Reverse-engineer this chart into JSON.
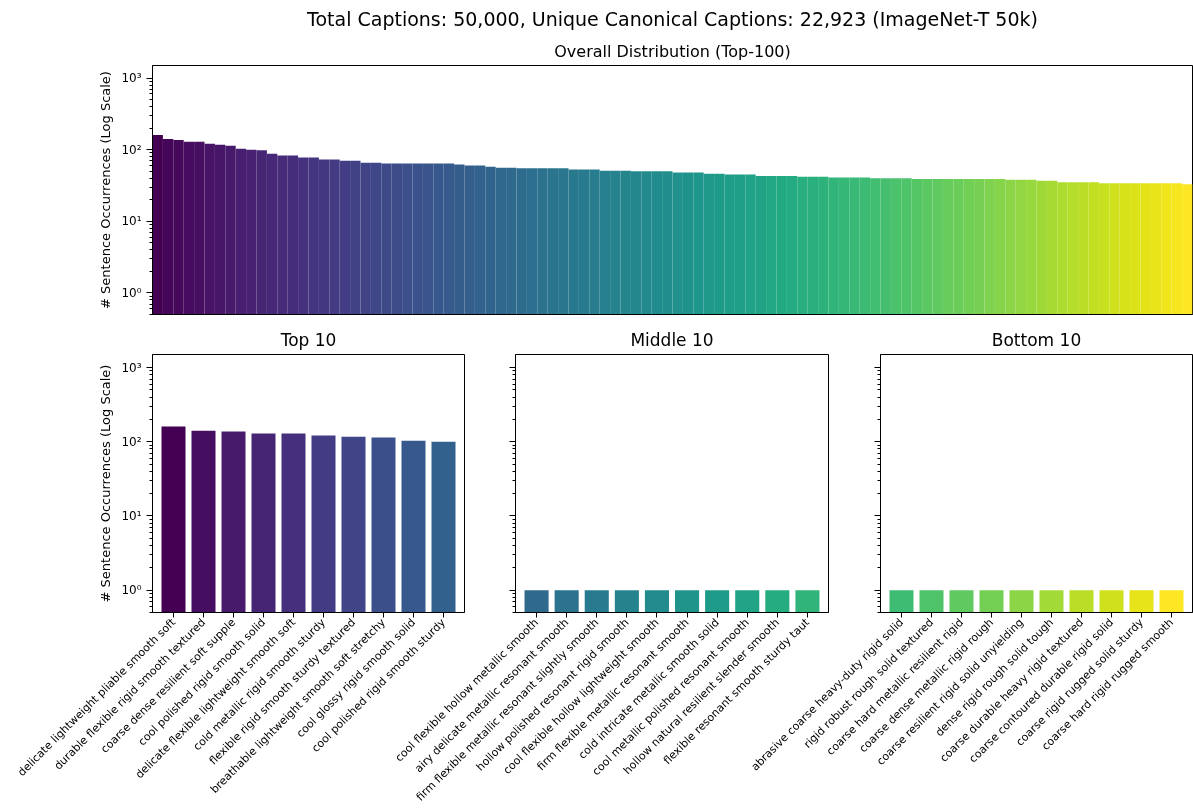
{
  "chart_data": [
    {
      "type": "bar",
      "title": "Total Captions: 50,000, Unique Canonical Captions: 22,923 (ImageNet-T 50k)",
      "subtitle": "Overall Distribution (Top-100)",
      "ylabel": "# Sentence Occurrences (Log Scale)",
      "log": true,
      "tick_labels": "y",
      "categories": [
        null,
        null,
        null,
        null,
        null,
        null,
        null,
        null,
        null,
        null,
        null,
        null,
        null,
        null,
        null,
        null,
        null,
        null,
        null,
        null,
        null,
        null,
        null,
        null,
        null,
        null,
        null,
        null,
        null,
        null,
        null,
        null,
        null,
        null,
        null,
        null,
        null,
        null,
        null,
        null,
        null,
        null,
        null,
        null,
        null,
        null,
        null,
        null,
        null,
        null,
        null,
        null,
        null,
        null,
        null,
        null,
        null,
        null,
        null,
        null,
        null,
        null,
        null,
        null,
        null,
        null,
        null,
        null,
        null,
        null,
        null,
        null,
        null,
        null,
        null,
        null,
        null,
        null,
        null,
        null,
        null,
        null,
        null,
        null,
        null,
        null,
        null,
        null,
        null,
        null,
        null,
        null,
        null,
        null,
        null,
        null,
        null,
        null,
        null,
        null
      ],
      "values": [
        160,
        141,
        137,
        129,
        129,
        121,
        117,
        114,
        103,
        100,
        98,
        88,
        83,
        83,
        78,
        78,
        73,
        73,
        70,
        70,
        66,
        66,
        64,
        64,
        64,
        64,
        64,
        64,
        64,
        62,
        60,
        60,
        58,
        56,
        56,
        55,
        55,
        55,
        55,
        55,
        53,
        53,
        53,
        51,
        51,
        51,
        50,
        50,
        50,
        50,
        48,
        48,
        48,
        46,
        46,
        45,
        45,
        45,
        43,
        43,
        43,
        43,
        42,
        42,
        42,
        41,
        41,
        41,
        41,
        40,
        40,
        40,
        40,
        39,
        39,
        39,
        39,
        39,
        39,
        39,
        39,
        39,
        38,
        38,
        38,
        37,
        37,
        35,
        35,
        35,
        35,
        34,
        34,
        34,
        34,
        34,
        34,
        34,
        34,
        33
      ],
      "colors": [
        "#440154",
        "#450558",
        "#45085B",
        "#460C5F",
        "#470F62",
        "#471466",
        "#471669",
        "#481A6C",
        "#481E70",
        "#482172",
        "#472575",
        "#472777",
        "#472B7A",
        "#462D7C",
        "#46317E",
        "#453580",
        "#443781",
        "#433B83",
        "#423D84",
        "#414186",
        "#404487",
        "#3F4788",
        "#3D4A89",
        "#3D4C89",
        "#3B508A",
        "#3A528B",
        "#39558B",
        "#37588C",
        "#365A8C",
        "#355D8C",
        "#345F8D",
        "#32628D",
        "#31648D",
        "#30678D",
        "#2F6A8D",
        "#2E6C8E",
        "#2D6F8E",
        "#2C718E",
        "#2B748E",
        "#2A768E",
        "#29798E",
        "#287B8E",
        "#277D8E",
        "#26808E",
        "#25828E",
        "#24858D",
        "#23878D",
        "#22898D",
        "#218C8D",
        "#218E8C",
        "#20918C",
        "#1F938B",
        "#1F968B",
        "#1E998A",
        "#1E9A89",
        "#1E9D88",
        "#1E9F88",
        "#1FA286",
        "#20A485",
        "#21A784",
        "#23A982",
        "#25AB81",
        "#28AE7F",
        "#2AB07E",
        "#2EB27C",
        "#30B47A",
        "#35B778",
        "#39B976",
        "#3DBB74",
        "#42BE71",
        "#45BF6F",
        "#4BC26C",
        "#4FC369",
        "#55C666",
        "#5BC862",
        "#60C960",
        "#67CC5C",
        "#6BCD59",
        "#72CF55",
        "#77D052",
        "#7ED24E",
        "#86D449",
        "#8BD546",
        "#92D741",
        "#97D83E",
        "#9FD938",
        "#A7DB33",
        "#ADDC30",
        "#B5DD2B",
        "#BADE27",
        "#C2DF22",
        "#C7E01F",
        "#CFE11C",
        "#D7E219",
        "#DCE218",
        "#E4E318",
        "#E9E419",
        "#F1E51C",
        "#F6E61F",
        "#FDE724"
      ],
      "ylim": [
        0.5,
        1500
      ],
      "yticks": [
        {
          "value": 1,
          "label": "10⁰"
        },
        {
          "value": 10,
          "label": "10¹"
        },
        {
          "value": 100,
          "label": "10²"
        },
        {
          "value": 1000,
          "label": "10³"
        }
      ]
    },
    {
      "type": "bar",
      "title": "Top 10",
      "ylabel": "# Sentence Occurrences (Log Scale)",
      "log": true,
      "categories": [
        "delicate lightweight pliable smooth soft",
        "durable flexible rigid smooth textured",
        "coarse dense resilient soft supple",
        "cool polished rigid smooth solid",
        "delicate flexible lightweight smooth soft",
        "cold metallic rigid smooth sturdy",
        "flexible rigid smooth sturdy textured",
        "breathable lightweight smooth soft stretchy",
        "cool glossy rigid smooth solid",
        "cool polished rigid smooth sturdy"
      ],
      "values": [
        160,
        141,
        137,
        129,
        129,
        121,
        117,
        114,
        103,
        100
      ],
      "colors": [
        "#440154",
        "#460E61",
        "#481A6C",
        "#472575",
        "#46307D",
        "#433B83",
        "#3F4587",
        "#3B508A",
        "#37588C",
        "#33618D"
      ],
      "ylim": [
        0.5,
        1500
      ],
      "yticks": [
        {
          "value": 1,
          "label": "10⁰"
        },
        {
          "value": 10,
          "label": "10¹"
        },
        {
          "value": 100,
          "label": "10²"
        },
        {
          "value": 1000,
          "label": "10³"
        }
      ]
    },
    {
      "type": "bar",
      "title": "Middle 10",
      "log": true,
      "tick_labels": "x",
      "categories": [
        "cool flexible hollow metallic smooth",
        "airy delicate metallic resonant smooth",
        "firm flexible metallic resonant slightly smooth",
        "hollow polished resonant rigid smooth",
        "cool flexible hollow lightweight smooth",
        "firm flexible metallic resonant smooth",
        "cold intricate metallic smooth solid",
        "cool metallic polished resonant smooth",
        "hollow natural resilient slender smooth",
        "flexible resonant smooth sturdy taut"
      ],
      "values": [
        1,
        1,
        1,
        1,
        1,
        1,
        1,
        1,
        1,
        1
      ],
      "colors": [
        "#2F6A8D",
        "#2B738E",
        "#287B8E",
        "#25838D",
        "#228B8D",
        "#1F948B",
        "#1E9C89",
        "#20A485",
        "#26AC81",
        "#30B47A"
      ],
      "ylim": [
        0.5,
        1500
      ],
      "yticks": [
        {
          "value": 1,
          "label": null
        },
        {
          "value": 10,
          "label": null
        },
        {
          "value": 100,
          "label": null
        },
        {
          "value": 1000,
          "label": null
        }
      ]
    },
    {
      "type": "bar",
      "title": "Bottom 10",
      "log": true,
      "tick_labels": "x",
      "categories": [
        "abrasive coarse heavy-duty rigid solid",
        "rigid robust rough solid textured",
        "coarse hard metallic resilient rigid",
        "coarse dense metallic rigid rough",
        "coarse resilient rigid solid unyielding",
        "dense rigid rough solid tough",
        "coarse durable heavy rigid textured",
        "coarse contoured durable rigid solid",
        "coarse rigid rugged solid sturdy",
        "coarse hard rigid rugged smooth"
      ],
      "values": [
        1,
        1,
        1,
        1,
        1,
        1,
        1,
        1,
        1,
        1
      ],
      "colors": [
        "#3EBC73",
        "#4FC369",
        "#60C960",
        "#74D054",
        "#8BD546",
        "#A2DA37",
        "#BADE27",
        "#CFE11C",
        "#E7E419",
        "#FDE724"
      ],
      "ylim": [
        0.5,
        1500
      ],
      "yticks": [
        {
          "value": 1,
          "label": null
        },
        {
          "value": 10,
          "label": null
        },
        {
          "value": 100,
          "label": null
        },
        {
          "value": 1000,
          "label": null
        }
      ]
    }
  ]
}
